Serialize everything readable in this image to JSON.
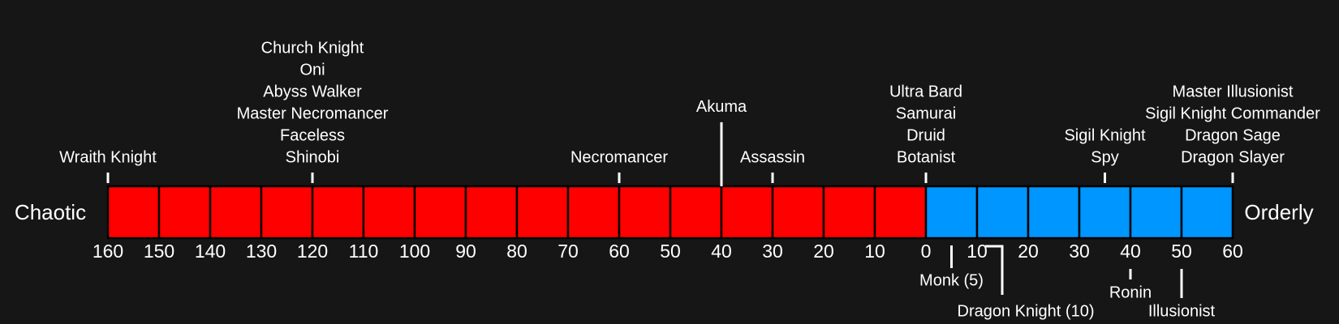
{
  "chart_data": {
    "type": "alignment-scale",
    "left_label": "Chaotic",
    "right_label": "Orderly",
    "xlim": [
      -160,
      60
    ],
    "xticks": [
      {
        "value": -160,
        "label": "160"
      },
      {
        "value": -150,
        "label": "150"
      },
      {
        "value": -140,
        "label": "140"
      },
      {
        "value": -130,
        "label": "130"
      },
      {
        "value": -120,
        "label": "120"
      },
      {
        "value": -110,
        "label": "110"
      },
      {
        "value": -100,
        "label": "100"
      },
      {
        "value": -90,
        "label": "90"
      },
      {
        "value": -80,
        "label": "80"
      },
      {
        "value": -70,
        "label": "70"
      },
      {
        "value": -60,
        "label": "60"
      },
      {
        "value": -50,
        "label": "50"
      },
      {
        "value": -40,
        "label": "40"
      },
      {
        "value": -30,
        "label": "30"
      },
      {
        "value": -20,
        "label": "20"
      },
      {
        "value": -10,
        "label": "10"
      },
      0,
      10,
      20,
      30,
      40,
      50,
      60
    ],
    "chaotic_color": "#ff0000",
    "orderly_color": "#0096ff",
    "top_groups": [
      {
        "x": -160,
        "names": [
          "Wraith Knight"
        ]
      },
      {
        "x": -120,
        "names": [
          "Church Knight",
          "Oni",
          "Abyss Walker",
          "Master Necromancer",
          "Faceless",
          "Shinobi"
        ]
      },
      {
        "x": -60,
        "names": [
          "Necromancer"
        ]
      },
      {
        "x": -40,
        "names": [
          "Akuma"
        ]
      },
      {
        "x": -30,
        "names": [
          "Assassin"
        ]
      },
      {
        "x": 0,
        "names": [
          "Ultra Bard",
          "Samurai",
          "Druid",
          "Botanist"
        ]
      },
      {
        "x": 35,
        "names": [
          "Sigil Knight",
          "Spy"
        ]
      },
      {
        "x": 60,
        "names": [
          "Master Illusionist",
          "Sigil Knight Commander",
          "Dragon Sage",
          "Dragon Slayer"
        ]
      }
    ],
    "bottom_items": [
      {
        "x": 5,
        "label": "Monk (5)"
      },
      {
        "x": 10,
        "label": "Dragon Knight (10)"
      },
      {
        "x": 40,
        "label": "Ronin"
      },
      {
        "x": 50,
        "label": "Illusionist"
      }
    ]
  }
}
